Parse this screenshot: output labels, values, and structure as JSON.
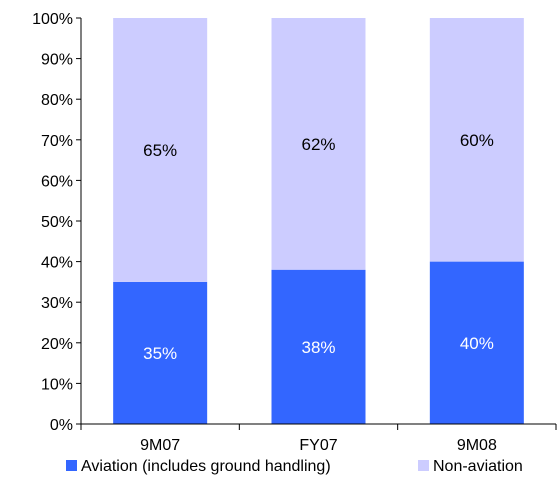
{
  "chart_data": {
    "type": "bar",
    "stacked": true,
    "percent_stacked": true,
    "categories": [
      "9M07",
      "FY07",
      "9M08"
    ],
    "series": [
      {
        "name": "Aviation (includes ground handling)",
        "values": [
          35,
          38,
          40
        ],
        "labels": [
          "35%",
          "38%",
          "40%"
        ],
        "color": "#3366ff",
        "label_color": "#ffffff"
      },
      {
        "name": "Non-aviation",
        "values": [
          65,
          62,
          60
        ],
        "labels": [
          "65%",
          "62%",
          "60%"
        ],
        "color": "#ccccff",
        "label_color": "#000000"
      }
    ],
    "ylim": [
      0,
      100
    ],
    "y_ticks": [
      "0%",
      "10%",
      "20%",
      "30%",
      "40%",
      "50%",
      "60%",
      "70%",
      "80%",
      "90%",
      "100%"
    ],
    "grid": false,
    "legend_position": "bottom"
  }
}
